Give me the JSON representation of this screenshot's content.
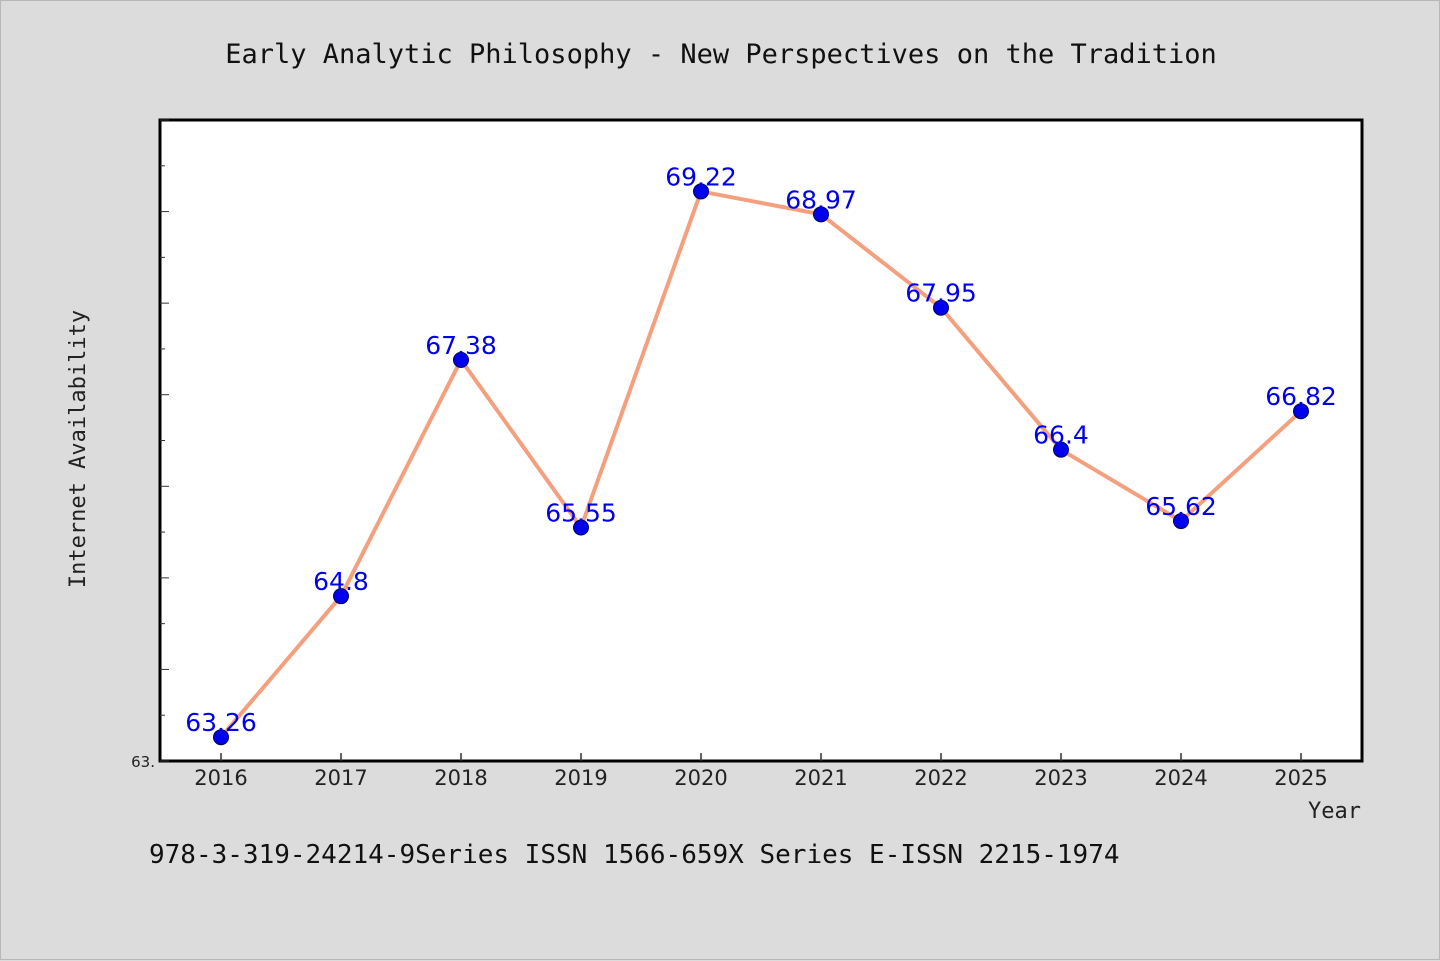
{
  "chart_data": {
    "type": "line",
    "title": "Early Analytic Philosophy - New Perspectives on the Tradition",
    "xlabel": "Year",
    "ylabel": "Internet Availability",
    "x": [
      "2016",
      "2017",
      "2018",
      "2019",
      "2020",
      "2021",
      "2022",
      "2023",
      "2024",
      "2025"
    ],
    "series": [
      {
        "values": [
          63.26,
          64.8,
          67.38,
          65.55,
          69.22,
          68.97,
          67.95,
          66.4,
          65.62,
          66.82
        ],
        "labels": [
          "63.26",
          "64.8",
          "67.38",
          "65.55",
          "69.22",
          "68.97",
          "67.95",
          "66.4",
          "65.62",
          "66.82"
        ]
      }
    ],
    "ylim": [
      63.0,
      70.0
    ],
    "y_tick_label": "63.",
    "grid": false,
    "line_color": "#f4a07f",
    "marker_color": "#0000ee",
    "label_color": "#0000ee"
  },
  "footer": "978-3-319-24214-9Series ISSN 1566-659X Series E-ISSN 2215-1974"
}
